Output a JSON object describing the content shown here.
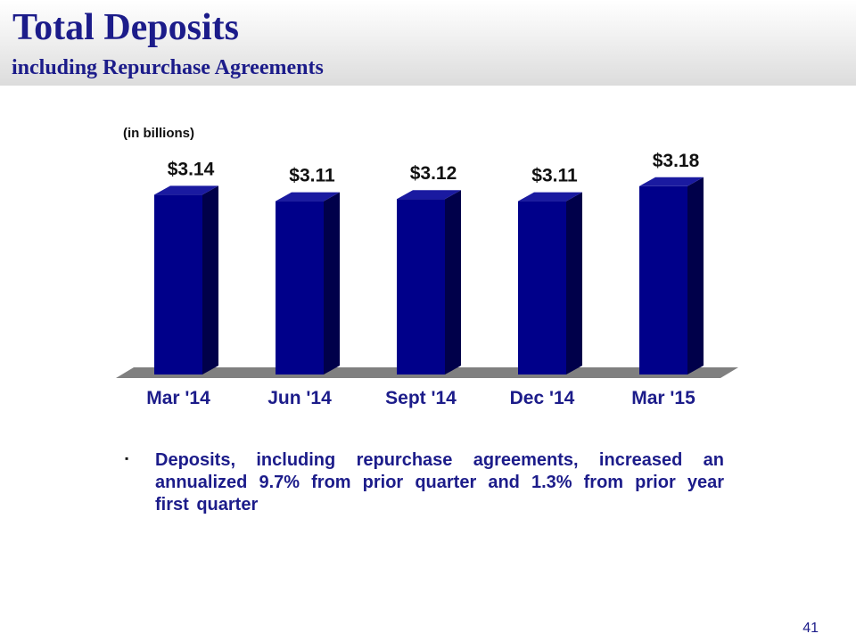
{
  "slide": {
    "title": "Total Deposits",
    "subtitle": "including Repurchase Agreements",
    "units_label": "(in billions)",
    "bullet_marker": "▪",
    "note": "Deposits, including repurchase agreements, increased an annualized 9.7% from prior quarter and 1.3% from prior year first quarter",
    "page_number": "41"
  },
  "colors": {
    "title": "#1c1c8a",
    "bar_front": "#00008a",
    "bar_side": "#00004a",
    "bar_top": "#1a1aa0",
    "floor": "#808080"
  },
  "chart_data": {
    "type": "bar",
    "categories": [
      "Mar '14",
      "Jun '14",
      "Sept '14",
      "Dec '14",
      "Mar '15"
    ],
    "values": [
      3.14,
      3.11,
      3.12,
      3.11,
      3.18
    ],
    "value_labels": [
      "$3.14",
      "$3.11",
      "$3.12",
      "$3.11",
      "$3.18"
    ],
    "ylabel": "(in billions)",
    "grid": false,
    "legend": "none",
    "style": "3d"
  }
}
